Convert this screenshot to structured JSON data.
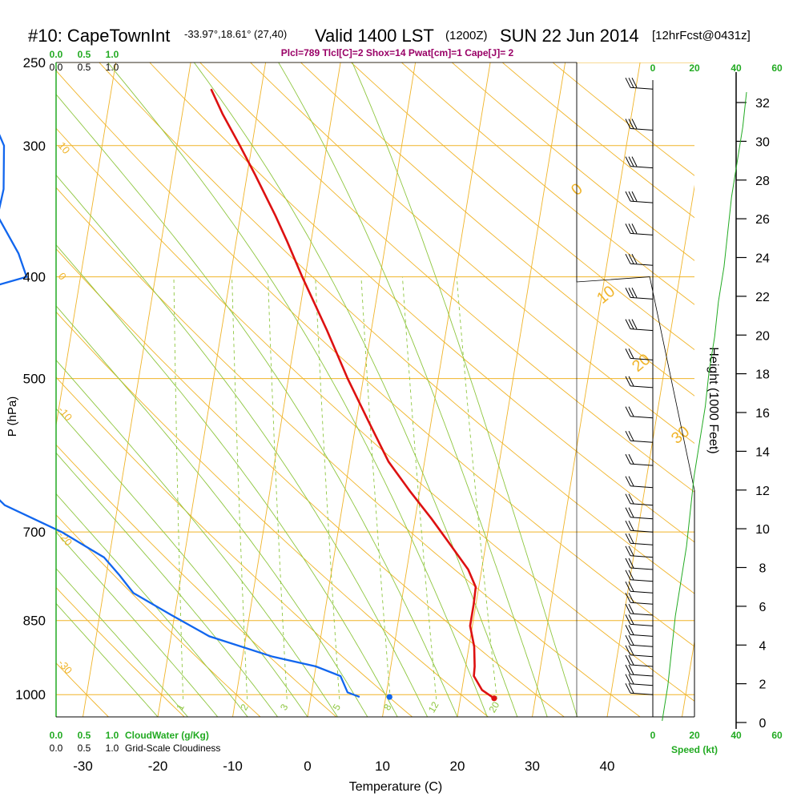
{
  "chart_data": {
    "type": "line",
    "title": {
      "station": "#10: CapeTownInt",
      "location": "-33.97°,18.61° (27,40)",
      "valid": "Valid 1400 LST",
      "zulu": "(1200Z)",
      "date": "SUN 22 Jun 2014",
      "forecast": "[12hrFcst@0431z]"
    },
    "subtitle": "Plcl=789 Tlcl[C]=2 Shox=14 Pwat[cm]=1 Cape[J]= 2",
    "xlabel": "Temperature (C)",
    "ylabel": "P (hPa)",
    "y2label": "Height (1000 Feet)",
    "x_ticks": [
      "-30",
      "-20",
      "-10",
      "0",
      "10",
      "20",
      "30",
      "40"
    ],
    "p_ticks": [
      "250",
      "300",
      "400",
      "500",
      "700",
      "850",
      "1000"
    ],
    "height_ticks": [
      "0",
      "2",
      "4",
      "6",
      "8",
      "10",
      "12",
      "14",
      "16",
      "18",
      "20",
      "22",
      "24",
      "26",
      "28",
      "30",
      "32"
    ],
    "speed_ticks": [
      "0",
      "20",
      "40",
      "60"
    ],
    "speed_label": "Speed (kt)",
    "cloud_scale_ticks": [
      "0.0",
      "0.5",
      "1.0"
    ],
    "cloudwater_label": "CloudWater (g/Kg)",
    "cloudiness_label": "Grid-Scale Cloudiness",
    "isotherm_labels": [
      "0",
      "10",
      "20",
      "30"
    ],
    "adiabat_labels": [
      "10",
      "0",
      "-10",
      "-20",
      "-30"
    ],
    "mixing_ratio_labels": [
      "1",
      "2",
      "3",
      "5",
      "8",
      "12",
      "20"
    ],
    "temperature_profile": {
      "color": "#dd1111",
      "p": [
        1008,
        990,
        960,
        940,
        900,
        860,
        820,
        790,
        760,
        720,
        680,
        640,
        600,
        550,
        500,
        450,
        400,
        370,
        350,
        320,
        300,
        280,
        265
      ],
      "t": [
        24.5,
        22.7,
        21.3,
        21.2,
        20.7,
        19.7,
        19.7,
        19.6,
        18.2,
        15.3,
        12.2,
        8.7,
        5.2,
        1.7,
        -2.1,
        -5.9,
        -10.4,
        -13.2,
        -15.3,
        -18.9,
        -21.6,
        -24.6,
        -26.7
      ]
    },
    "dewpoint_profile": {
      "color": "#1166ee",
      "p": [
        1005,
        995,
        960,
        940,
        920,
        880,
        840,
        800,
        770,
        740,
        700,
        660,
        640,
        600,
        560,
        520,
        480,
        440,
        420,
        400,
        380,
        350,
        330,
        300,
        280,
        265
      ],
      "td": [
        6.5,
        4.8,
        3.5,
        0.0,
        -6.0,
        -14.9,
        -20.4,
        -26.0,
        -28.2,
        -30.7,
        -36.9,
        -45.1,
        -47.3,
        -50.6,
        -54.1,
        -59.3,
        -64.9,
        -64.0,
        -57.1,
        -47.2,
        -48.8,
        -52.4,
        -52.2,
        -53.1,
        -55.6,
        -58.0
      ]
    },
    "surface_dewpoint_marker": 10.5,
    "surface_temperature_marker": 24.5,
    "wind_speed_kt": [
      5,
      8,
      10,
      12,
      15,
      18,
      20,
      22,
      25,
      28,
      30,
      33,
      35,
      38,
      40,
      42,
      45,
      48,
      50
    ],
    "ylim_hpa": [
      250,
      1050
    ],
    "xlim_c_at_1050": [
      -33,
      36
    ],
    "colors": {
      "isotherm_isobar": "#f0b429",
      "dry_adiabat": "#f0b429",
      "moist_adiabat": "#8ec63f",
      "mixing_ratio": "#8ec63f",
      "title_accent": "#990066",
      "scale_green": "#22aa22"
    }
  }
}
